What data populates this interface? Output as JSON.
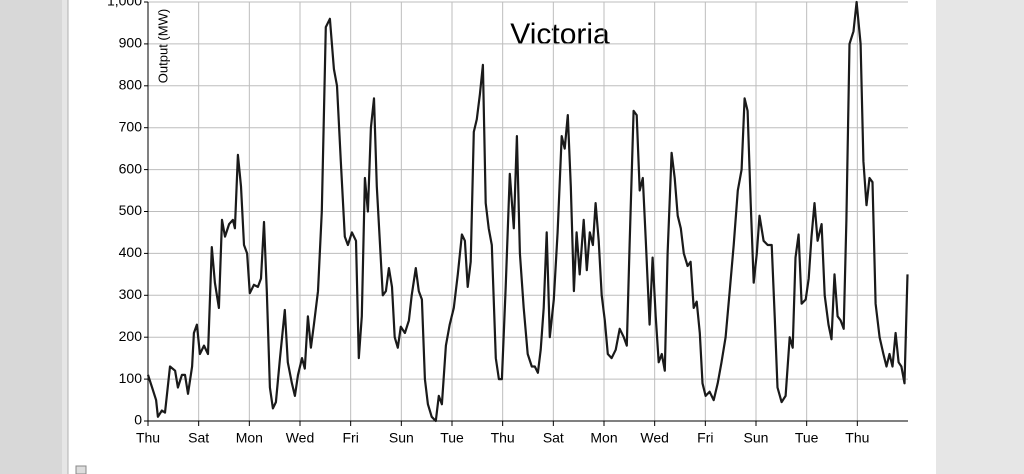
{
  "chart_data": {
    "type": "line",
    "title": "Victoria",
    "y_label": "Output (MW)",
    "xlim": [
      0,
      30
    ],
    "ylim": [
      0,
      1000
    ],
    "xticks": [
      {
        "value": 0,
        "label": "Thu"
      },
      {
        "value": 2,
        "label": "Sat"
      },
      {
        "value": 4,
        "label": "Mon"
      },
      {
        "value": 6,
        "label": "Wed"
      },
      {
        "value": 8,
        "label": "Fri"
      },
      {
        "value": 10,
        "label": "Sun"
      },
      {
        "value": 12,
        "label": "Tue"
      },
      {
        "value": 14,
        "label": "Thu"
      },
      {
        "value": 16,
        "label": "Sat"
      },
      {
        "value": 18,
        "label": "Mon"
      },
      {
        "value": 20,
        "label": "Wed"
      },
      {
        "value": 22,
        "label": "Fri"
      },
      {
        "value": 24,
        "label": "Sun"
      },
      {
        "value": 26,
        "label": "Tue"
      },
      {
        "value": 28,
        "label": "Thu"
      }
    ],
    "yticks": [
      0,
      100,
      200,
      300,
      400,
      500,
      600,
      700,
      800,
      900,
      {
        "value": 1000,
        "label": "1,000"
      }
    ],
    "grid": true,
    "series": [
      {
        "name": "Output",
        "color": "#1a1a1a",
        "x": [
          0,
          0.16,
          0.32,
          0.39,
          0.55,
          0.67,
          0.87,
          1.07,
          1.18,
          1.34,
          1.46,
          1.58,
          1.74,
          1.81,
          1.93,
          2.05,
          2.21,
          2.37,
          2.52,
          2.64,
          2.8,
          2.92,
          3.04,
          3.2,
          3.35,
          3.43,
          3.55,
          3.67,
          3.79,
          3.91,
          4.02,
          4.18,
          4.34,
          4.46,
          4.58,
          4.69,
          4.81,
          4.93,
          5.05,
          5.21,
          5.4,
          5.52,
          5.68,
          5.8,
          5.92,
          6.08,
          6.19,
          6.31,
          6.43,
          6.55,
          6.71,
          6.86,
          7.02,
          7.18,
          7.34,
          7.46,
          7.61,
          7.77,
          7.89,
          8.05,
          8.21,
          8.32,
          8.44,
          8.56,
          8.68,
          8.8,
          8.92,
          9.03,
          9.15,
          9.27,
          9.39,
          9.51,
          9.63,
          9.74,
          9.86,
          9.98,
          10.14,
          10.3,
          10.41,
          10.57,
          10.69,
          10.81,
          10.93,
          11.05,
          11.2,
          11.36,
          11.48,
          11.6,
          11.76,
          11.91,
          12.07,
          12.23,
          12.39,
          12.51,
          12.62,
          12.74,
          12.86,
          12.98,
          13.1,
          13.22,
          13.33,
          13.45,
          13.57,
          13.73,
          13.85,
          13.97,
          14.12,
          14.28,
          14.44,
          14.56,
          14.68,
          14.83,
          14.99,
          15.15,
          15.27,
          15.39,
          15.5,
          15.62,
          15.74,
          15.86,
          16.02,
          16.17,
          16.33,
          16.45,
          16.57,
          16.69,
          16.81,
          16.92,
          17.04,
          17.2,
          17.32,
          17.44,
          17.56,
          17.67,
          17.79,
          17.91,
          18.03,
          18.15,
          18.3,
          18.46,
          18.62,
          18.78,
          18.9,
          19.01,
          19.17,
          19.29,
          19.41,
          19.53,
          19.65,
          19.8,
          19.92,
          20.04,
          20.16,
          20.28,
          20.4,
          20.51,
          20.67,
          20.79,
          20.91,
          21.03,
          21.15,
          21.3,
          21.42,
          21.54,
          21.66,
          21.78,
          21.89,
          22.01,
          22.17,
          22.33,
          22.49,
          22.64,
          22.8,
          22.96,
          23.12,
          23.28,
          23.43,
          23.55,
          23.67,
          23.79,
          23.91,
          24.03,
          24.14,
          24.3,
          24.46,
          24.62,
          24.74,
          24.85,
          25.01,
          25.17,
          25.33,
          25.45,
          25.56,
          25.68,
          25.8,
          25.96,
          26.08,
          26.19,
          26.31,
          26.43,
          26.59,
          26.71,
          26.86,
          26.98,
          27.1,
          27.22,
          27.34,
          27.46,
          27.57,
          27.69,
          27.85,
          27.97,
          28.13,
          28.24,
          28.36,
          28.48,
          28.6,
          28.72,
          28.88,
          29.03,
          29.15,
          29.27,
          29.39,
          29.51,
          29.63,
          29.74,
          29.86,
          29.98
        ],
        "values": [
          110,
          80,
          50,
          10,
          25,
          20,
          130,
          120,
          80,
          110,
          110,
          65,
          130,
          210,
          230,
          160,
          180,
          160,
          415,
          330,
          270,
          480,
          440,
          470,
          480,
          460,
          635,
          560,
          420,
          400,
          305,
          325,
          320,
          340,
          475,
          310,
          80,
          30,
          45,
          150,
          265,
          140,
          90,
          60,
          110,
          150,
          125,
          250,
          175,
          230,
          310,
          500,
          940,
          960,
          840,
          800,
          620,
          440,
          420,
          450,
          430,
          150,
          250,
          580,
          500,
          700,
          770,
          560,
          430,
          300,
          310,
          365,
          320,
          200,
          175,
          225,
          210,
          240,
          300,
          365,
          310,
          290,
          100,
          40,
          10,
          0,
          60,
          40,
          180,
          230,
          270,
          350,
          445,
          430,
          320,
          380,
          690,
          720,
          780,
          850,
          520,
          460,
          420,
          150,
          100,
          100,
          320,
          590,
          460,
          680,
          400,
          270,
          160,
          130,
          130,
          115,
          170,
          270,
          450,
          200,
          290,
          450,
          680,
          650,
          730,
          560,
          310,
          450,
          350,
          480,
          360,
          450,
          420,
          520,
          430,
          300,
          240,
          160,
          150,
          170,
          220,
          200,
          180,
          420,
          740,
          730,
          550,
          580,
          430,
          230,
          390,
          250,
          140,
          160,
          120,
          400,
          640,
          580,
          490,
          460,
          400,
          370,
          380,
          270,
          285,
          210,
          90,
          60,
          70,
          50,
          90,
          140,
          200,
          310,
          420,
          550,
          600,
          770,
          740,
          520,
          330,
          400,
          490,
          430,
          420,
          420,
          250,
          80,
          45,
          60,
          200,
          175,
          390,
          445,
          280,
          290,
          340,
          440,
          520,
          430,
          470,
          300,
          230,
          195,
          350,
          250,
          240,
          220,
          480,
          900,
          930,
          1000,
          900,
          620,
          515,
          580,
          570,
          280,
          200,
          160,
          130,
          160,
          130,
          210,
          140,
          130,
          90,
          350
        ]
      }
    ]
  }
}
